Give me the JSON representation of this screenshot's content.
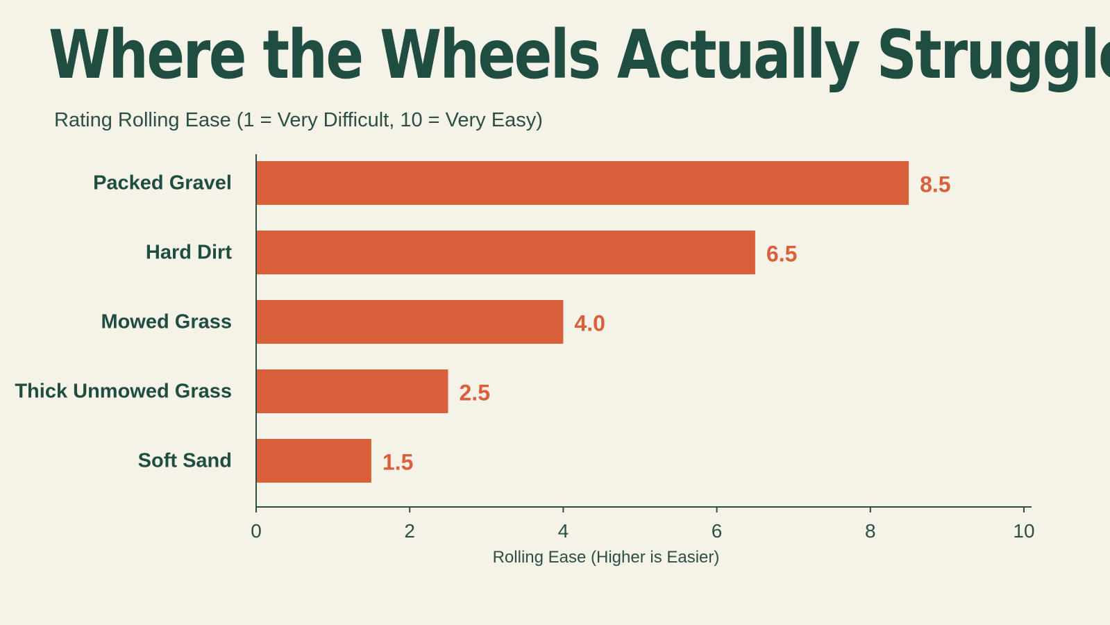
{
  "chart_data": {
    "type": "bar",
    "orientation": "horizontal",
    "title": "Where the Wheels Actually Struggle",
    "subtitle": "Rating Rolling Ease (1 = Very Difficult, 10 = Very Easy)",
    "categories": [
      "Packed Gravel",
      "Hard Dirt",
      "Mowed Grass",
      "Thick Unmowed Grass",
      "Soft Sand"
    ],
    "values": [
      8.5,
      6.5,
      4.0,
      2.5,
      1.5
    ],
    "value_labels": [
      "8.5",
      "6.5",
      "4.0",
      "2.5",
      "1.5"
    ],
    "xlabel": "Rolling Ease (Higher is Easier)",
    "ylabel": "",
    "xlim": [
      0,
      10
    ],
    "xticks": [
      0,
      2,
      4,
      6,
      8,
      10
    ],
    "xtick_labels": [
      "0",
      "2",
      "4",
      "6",
      "8",
      "10"
    ],
    "grid": false,
    "legend": "none",
    "colors": {
      "bar": "#d9603a",
      "value_label": "#d9603a",
      "text": "#1f4d42",
      "axis": "#2b4f47",
      "background": "#f5f2e8"
    }
  }
}
